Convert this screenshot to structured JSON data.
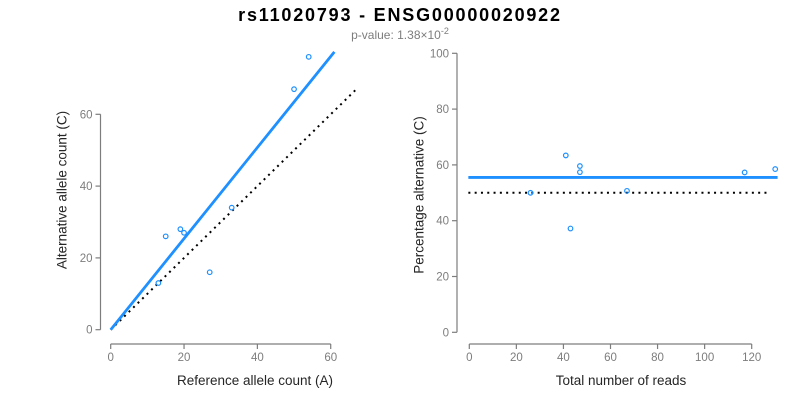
{
  "figure": {
    "title": "rs11020793 - ENSG00000020922",
    "subtitle": {
      "text": "p-value: 1.38×10",
      "exponent": "-2"
    }
  },
  "colors": {
    "blue": "#1E90FF",
    "black": "#000000",
    "axis": "#7d7d7d",
    "tick_label": "#7d7d7d",
    "label_text": "#262626",
    "subtitle": "#7d7d7d"
  },
  "chart_data": [
    {
      "type": "scatter",
      "panel": "allele-counts",
      "xlabel": "Reference allele count (A)",
      "ylabel": "Alternative allele count (C)",
      "x_ticks": [
        0,
        20,
        40,
        60
      ],
      "y_ticks": [
        0,
        20,
        40,
        60
      ],
      "xlim": [
        0,
        67
      ],
      "ylim": [
        0,
        78
      ],
      "grid": false,
      "legend": "none",
      "points": [
        [
          13,
          13
        ],
        [
          15,
          26
        ],
        [
          19,
          28
        ],
        [
          20,
          27
        ],
        [
          27,
          16
        ],
        [
          33,
          34
        ],
        [
          50,
          67
        ],
        [
          54,
          76
        ]
      ],
      "lines": [
        {
          "label": "identity-line",
          "dash": "dotted",
          "color": "#000000",
          "x1": 0,
          "y1": 0,
          "x2": 67.3,
          "y2": 67.3
        },
        {
          "label": "fit-line",
          "dash": "solid",
          "color": "#1E90FF",
          "x1": 0,
          "y1": 0,
          "x2": 61,
          "y2": 77.4
        }
      ]
    },
    {
      "type": "scatter",
      "panel": "percentage-alternative",
      "xlabel": "Total number of reads",
      "ylabel": "Percentage alternative (C)",
      "x_ticks": [
        0,
        20,
        40,
        60,
        80,
        100,
        120
      ],
      "y_ticks": [
        0,
        20,
        40,
        60,
        80,
        100
      ],
      "xlim": [
        0,
        131
      ],
      "ylim": [
        0,
        100
      ],
      "grid": false,
      "legend": "none",
      "points": [
        [
          26,
          50
        ],
        [
          41,
          63.4
        ],
        [
          43,
          37.2
        ],
        [
          47,
          59.6
        ],
        [
          47,
          57.4
        ],
        [
          67,
          50.7
        ],
        [
          117,
          57.3
        ],
        [
          130,
          58.5
        ]
      ],
      "lines": [
        {
          "label": "fifty-percent-line",
          "dash": "dotted",
          "color": "#000000",
          "x1": -0.4,
          "y1": 50,
          "x2": 127.5,
          "y2": 50
        },
        {
          "label": "mean-percentage-line",
          "dash": "solid",
          "color": "#1E90FF",
          "x1": -0.4,
          "y1": 55.5,
          "x2": 131,
          "y2": 55.5
        }
      ]
    }
  ]
}
